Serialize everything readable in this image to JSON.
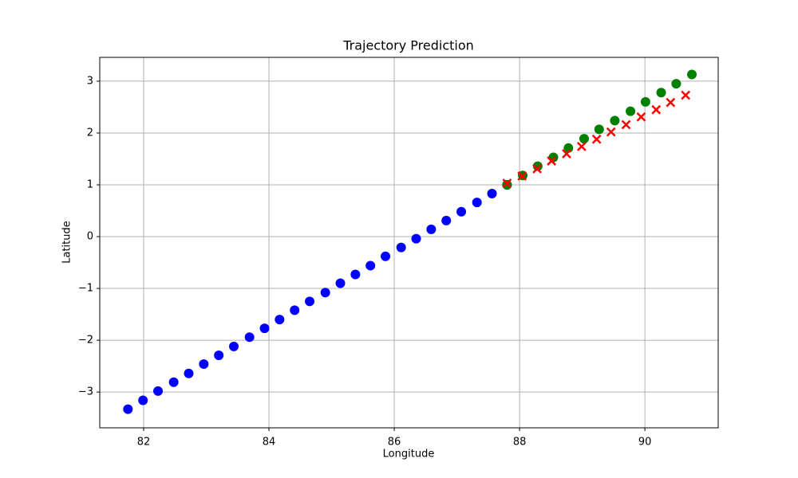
{
  "chart_data": {
    "type": "scatter",
    "title": "Trajectory Prediction",
    "x_label": "Longitude",
    "y_label": "Latitude",
    "xlim": [
      81.3,
      91.17
    ],
    "ylim": [
      -3.69,
      3.46
    ],
    "xticks": [
      82,
      84,
      86,
      88,
      90
    ],
    "yticks": [
      {
        "value": -3,
        "label": "−3"
      },
      {
        "value": -2,
        "label": "−2"
      },
      {
        "value": -1,
        "label": "−1"
      },
      0,
      1,
      2,
      3
    ],
    "grid": true,
    "series": [
      {
        "color": "#0000ff",
        "marker": "o",
        "x": [
          81.75,
          81.99,
          82.23,
          82.48,
          82.72,
          82.96,
          83.2,
          83.44,
          83.69,
          83.93,
          84.17,
          84.41,
          84.65,
          84.9,
          85.14,
          85.38,
          85.62,
          85.86,
          86.11,
          86.35,
          86.59,
          86.83,
          87.07,
          87.32,
          87.56,
          87.8
        ],
        "y": [
          -3.33,
          -3.16,
          -2.98,
          -2.81,
          -2.64,
          -2.46,
          -2.29,
          -2.12,
          -1.94,
          -1.77,
          -1.6,
          -1.42,
          -1.25,
          -1.08,
          -0.9,
          -0.73,
          -0.56,
          -0.38,
          -0.21,
          -0.04,
          0.14,
          0.31,
          0.48,
          0.66,
          0.83,
          1.0
        ]
      },
      {
        "color": "#008000",
        "marker": "o",
        "x": [
          87.8,
          88.05,
          88.29,
          88.54,
          88.78,
          89.03,
          89.27,
          89.52,
          89.77,
          90.01,
          90.26,
          90.5,
          90.75
        ],
        "y": [
          1.0,
          1.18,
          1.36,
          1.53,
          1.71,
          1.89,
          2.07,
          2.24,
          2.42,
          2.6,
          2.78,
          2.95,
          3.13
        ]
      },
      {
        "color": "#ff0000",
        "marker": "x",
        "x": [
          87.8,
          88.04,
          88.28,
          88.51,
          88.75,
          88.99,
          89.23,
          89.46,
          89.7,
          89.94,
          90.18,
          90.41,
          90.65
        ],
        "y": [
          1.03,
          1.17,
          1.31,
          1.46,
          1.6,
          1.74,
          1.88,
          2.02,
          2.16,
          2.31,
          2.45,
          2.59,
          2.73
        ]
      }
    ]
  }
}
